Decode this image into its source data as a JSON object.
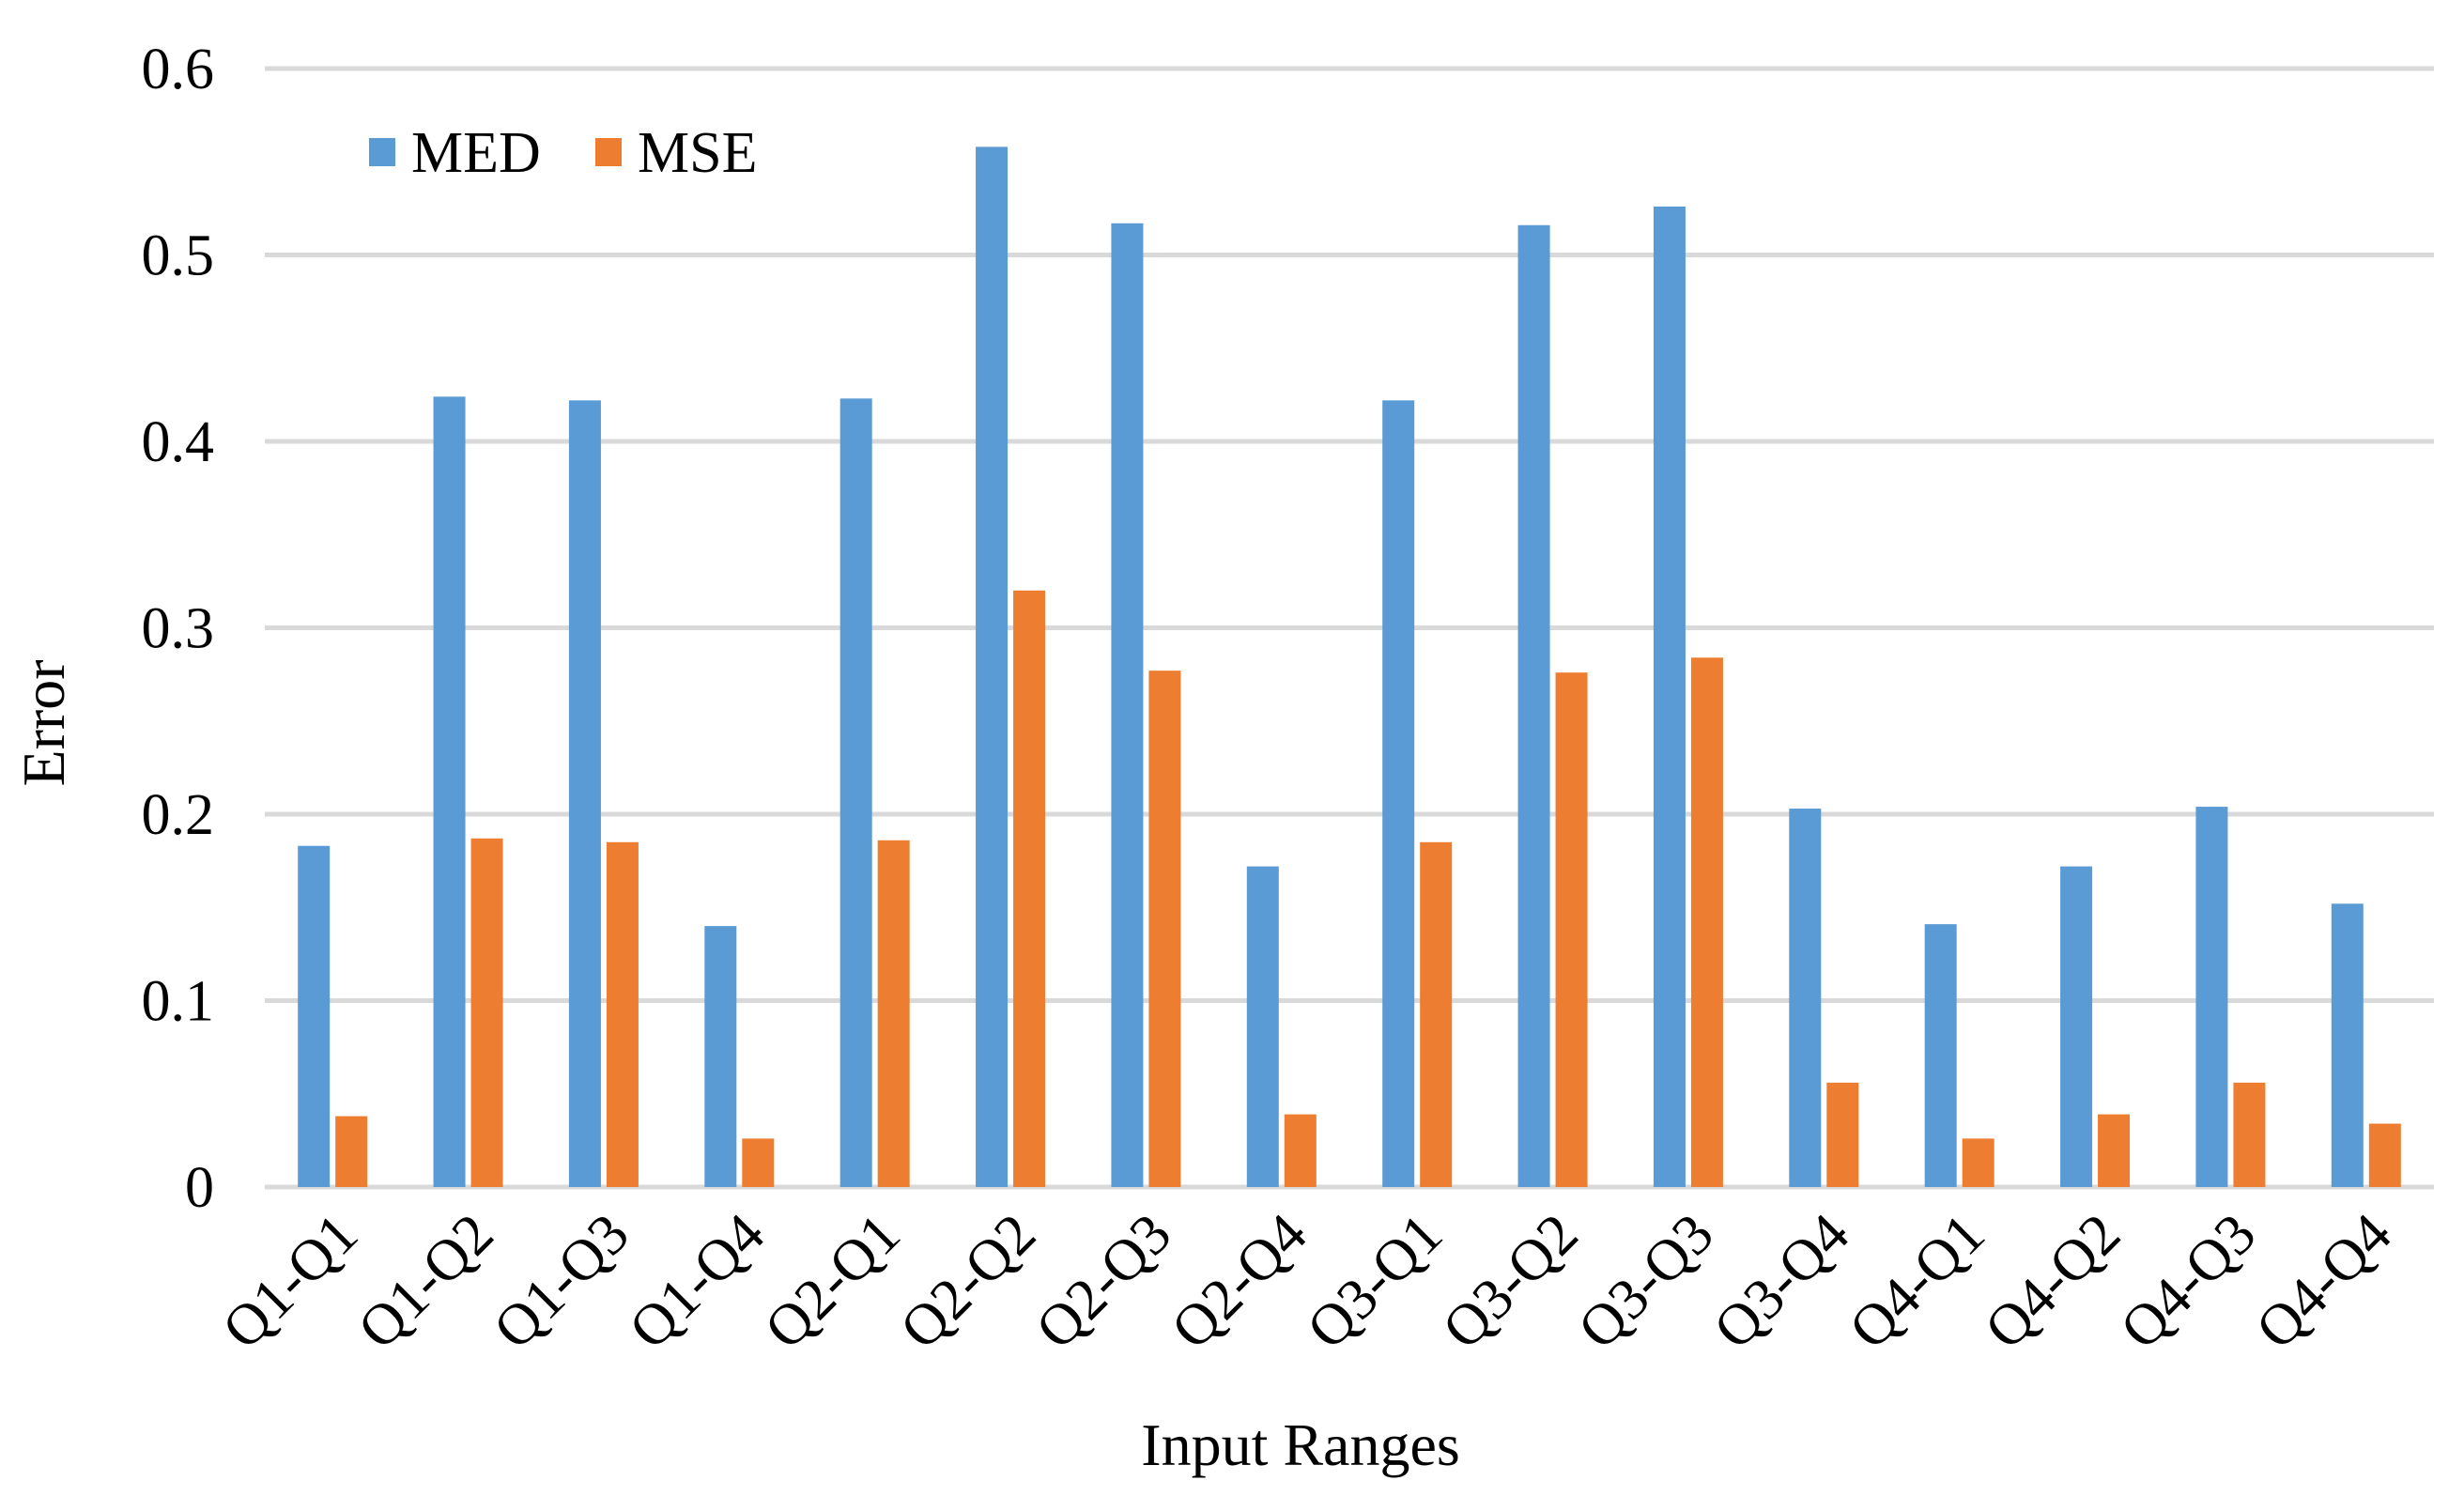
{
  "chart_data": {
    "type": "bar",
    "title": "",
    "xlabel": "Input Ranges",
    "ylabel": "Error",
    "ylim": [
      0,
      0.6
    ],
    "yticks": [
      "0",
      "0.1",
      "0.2",
      "0.3",
      "0.4",
      "0.5",
      "0.6"
    ],
    "grid": true,
    "legend": "top-left",
    "categories": [
      "Q1-Q1",
      "Q1-Q2",
      "Q1-Q3",
      "Q1-Q4",
      "Q2-Q1",
      "Q2-Q2",
      "Q2-Q3",
      "Q2-Q4",
      "Q3-Q1",
      "Q3-Q2",
      "Q3-Q3",
      "Q3-Q4",
      "Q4-Q1",
      "Q4-Q2",
      "Q4-Q3",
      "Q4-Q4"
    ],
    "series": [
      {
        "name": "MED",
        "color": "#5b9bd5",
        "values": [
          0.183,
          0.424,
          0.422,
          0.14,
          0.423,
          0.558,
          0.517,
          0.172,
          0.422,
          0.516,
          0.526,
          0.203,
          0.141,
          0.172,
          0.204,
          0.152
        ]
      },
      {
        "name": "MSE",
        "color": "#ed7d31",
        "values": [
          0.038,
          0.187,
          0.185,
          0.026,
          0.186,
          0.32,
          0.277,
          0.039,
          0.185,
          0.276,
          0.284,
          0.056,
          0.026,
          0.039,
          0.056,
          0.034
        ]
      }
    ]
  }
}
